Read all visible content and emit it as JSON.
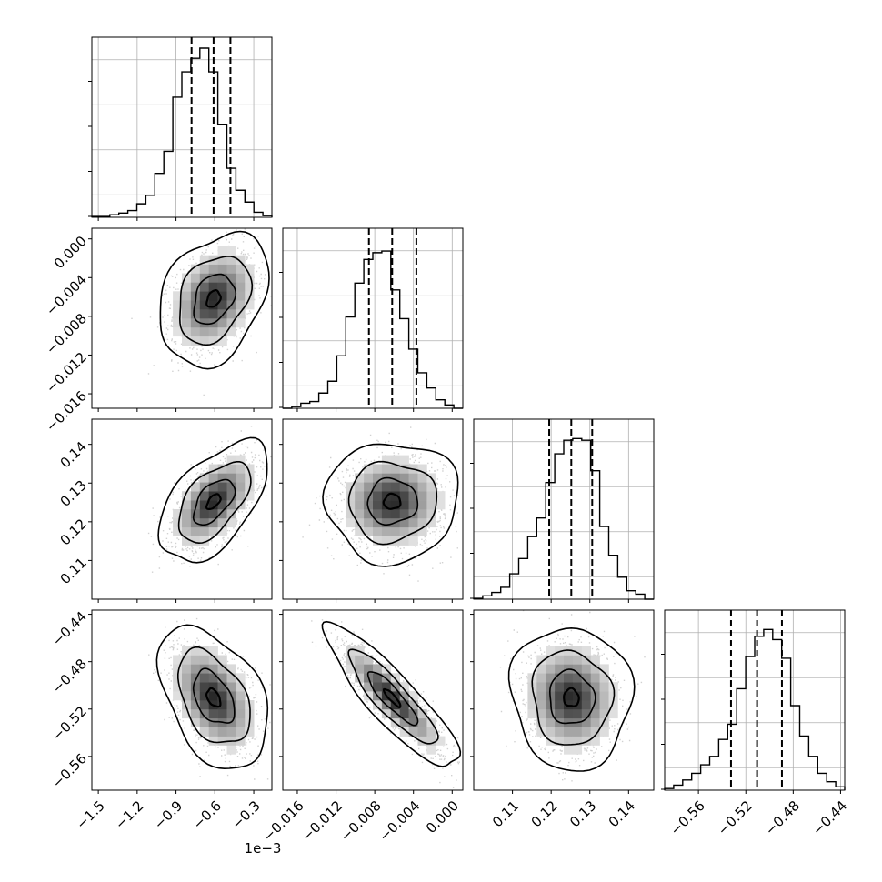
{
  "chart_data": {
    "type": "corner",
    "parameters": [
      {
        "id": "p0",
        "range": [
          -1.55,
          -0.16
        ],
        "ticks": [
          -1.5,
          -1.2,
          -0.9,
          -0.6,
          -0.3
        ],
        "tick_labels": [
          "−1.5",
          "−1.2",
          "−0.9",
          "−0.6",
          "−0.3"
        ],
        "offset_label": "1e−3",
        "quantiles": [
          -0.78,
          -0.61,
          -0.48
        ]
      },
      {
        "id": "p1",
        "range": [
          -0.0175,
          0.0011
        ],
        "ticks": [
          -0.016,
          -0.012,
          -0.008,
          -0.004,
          0.0
        ],
        "tick_labels": [
          "−0.016",
          "−0.012",
          "−0.008",
          "−0.004",
          "0.000"
        ],
        "quantiles": [
          -0.0086,
          -0.0062,
          -0.0037
        ]
      },
      {
        "id": "p2",
        "range": [
          0.1,
          0.1465
        ],
        "ticks": [
          0.11,
          0.12,
          0.13,
          0.14
        ],
        "tick_labels": [
          "0.11",
          "0.12",
          "0.13",
          "0.14"
        ],
        "quantiles": [
          0.1195,
          0.1252,
          0.1306
        ]
      },
      {
        "id": "p3",
        "range": [
          -0.5885,
          -0.4365
        ],
        "ticks": [
          -0.56,
          -0.52,
          -0.48,
          -0.44
        ],
        "tick_labels": [
          "−0.56",
          "−0.52",
          "−0.48",
          "−0.44"
        ],
        "quantiles": [
          -0.5325,
          -0.5105,
          -0.4895
        ]
      }
    ],
    "histograms": [
      [
        0.005,
        0.005,
        0.015,
        0.025,
        0.04,
        0.08,
        0.13,
        0.26,
        0.39,
        0.71,
        0.86,
        0.94,
        1.0,
        0.86,
        0.55,
        0.29,
        0.16,
        0.09,
        0.03,
        0.01
      ],
      [
        0.0,
        0.01,
        0.03,
        0.04,
        0.09,
        0.16,
        0.31,
        0.54,
        0.74,
        0.88,
        0.92,
        0.93,
        0.7,
        0.53,
        0.35,
        0.21,
        0.12,
        0.05,
        0.02,
        0.0
      ],
      [
        0.005,
        0.02,
        0.04,
        0.07,
        0.15,
        0.24,
        0.37,
        0.48,
        0.69,
        0.86,
        0.94,
        0.95,
        0.94,
        0.76,
        0.43,
        0.26,
        0.13,
        0.05,
        0.03,
        0.0
      ],
      [
        0.01,
        0.03,
        0.06,
        0.1,
        0.15,
        0.2,
        0.3,
        0.39,
        0.6,
        0.79,
        0.91,
        0.95,
        0.89,
        0.78,
        0.5,
        0.32,
        0.2,
        0.1,
        0.05,
        0.02
      ]
    ],
    "correlations": [
      [
        1.0,
        0.3,
        0.55,
        -0.42
      ],
      [
        0.3,
        1.0,
        0.02,
        -0.88
      ],
      [
        0.55,
        0.02,
        1.0,
        -0.05
      ],
      [
        -0.42,
        -0.88,
        -0.05,
        1.0
      ]
    ],
    "grid": true,
    "quantile_line_style": "dashed"
  }
}
